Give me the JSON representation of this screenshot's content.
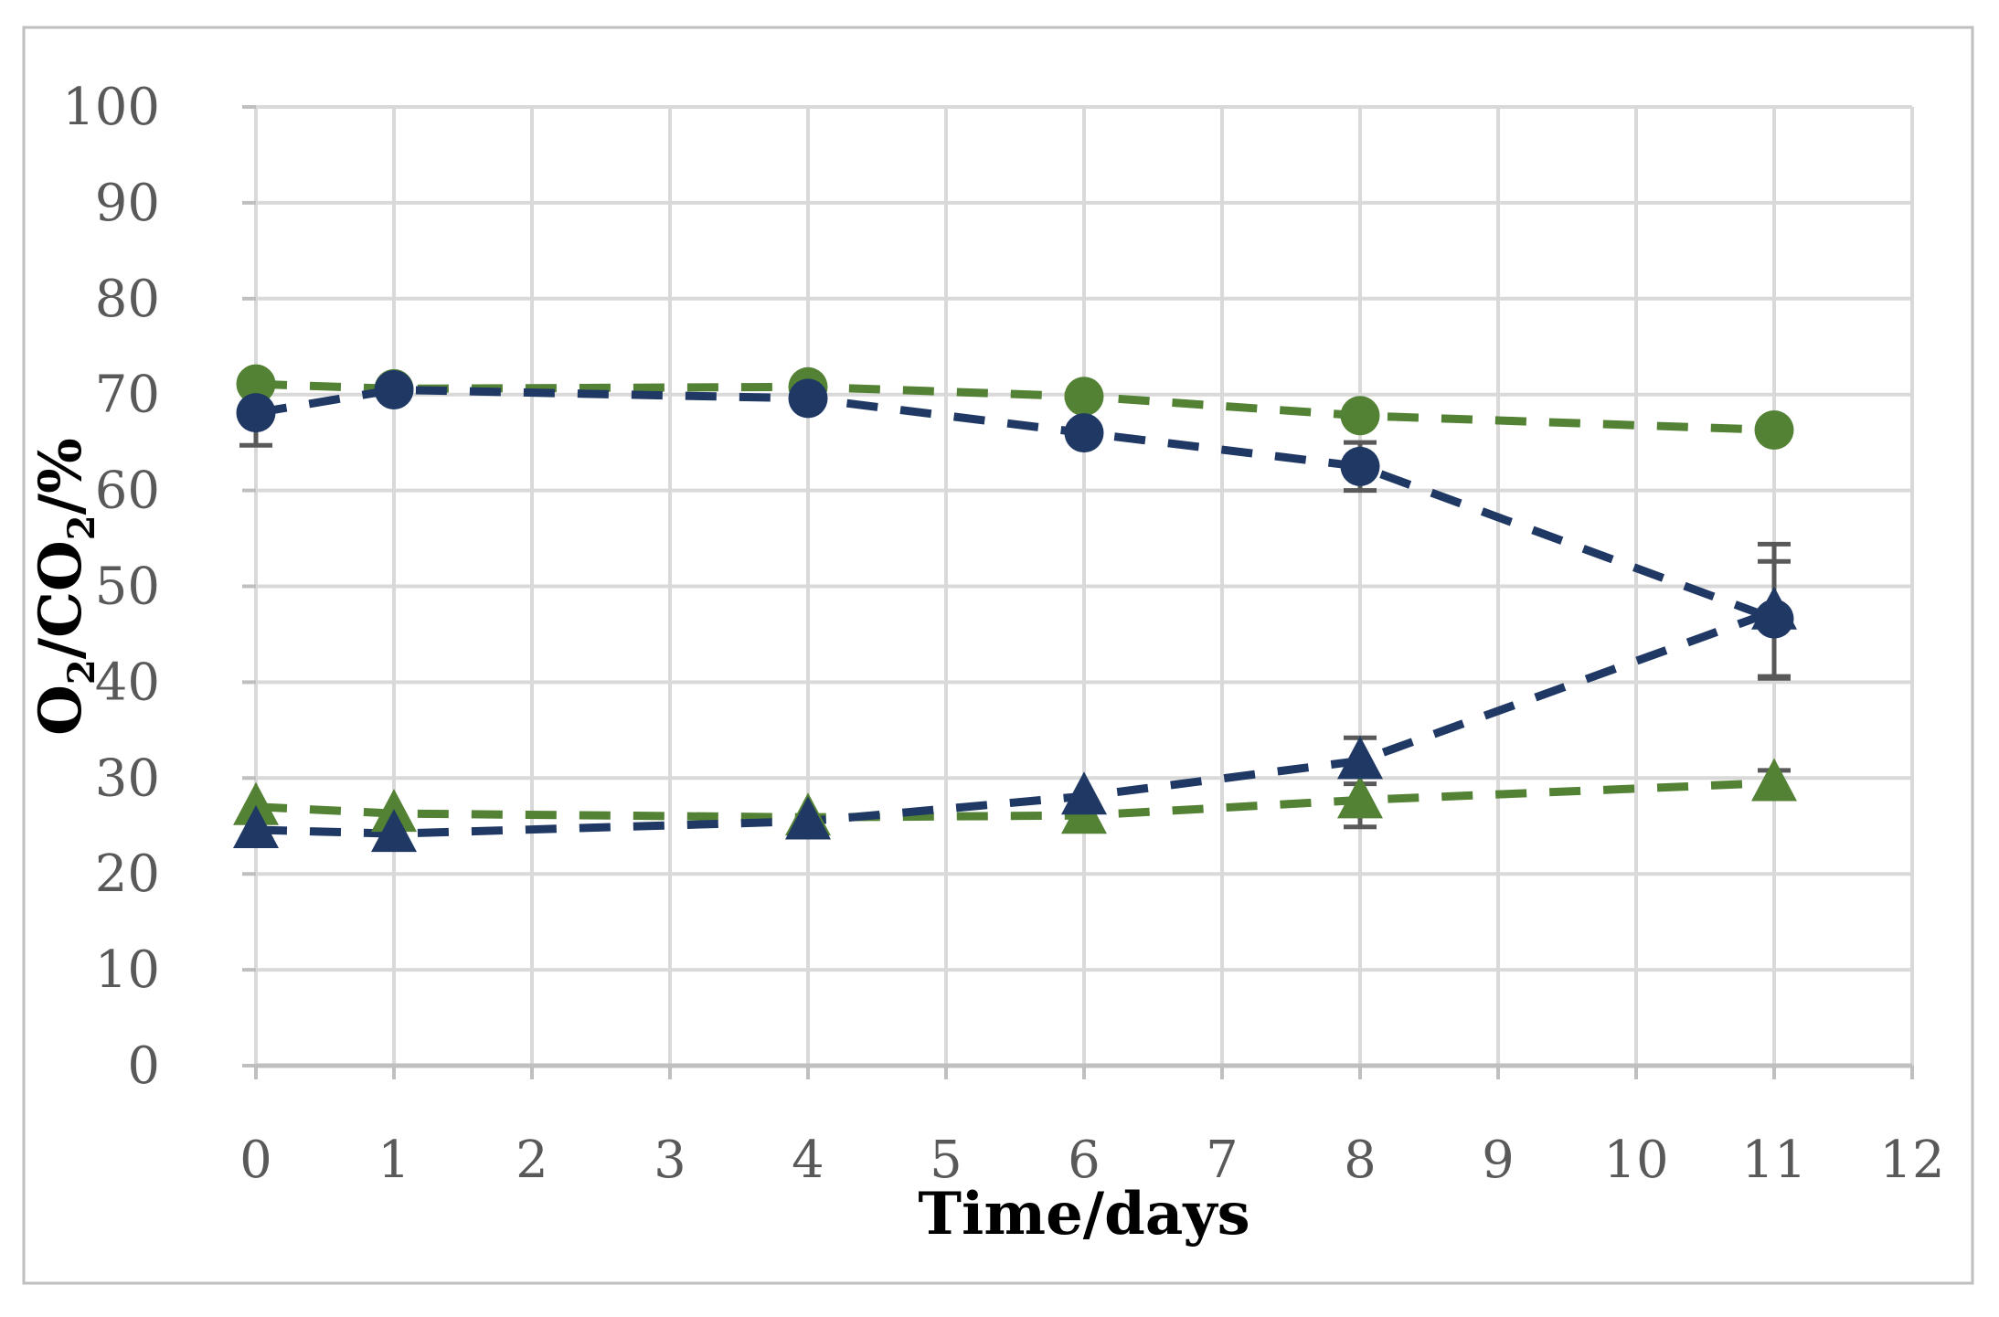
{
  "figure": {
    "background": "#ffffff",
    "border_color": "#bfbfbf"
  },
  "chart_data": {
    "type": "line",
    "title": "",
    "xlabel": "Time/days",
    "ylabel": "O2/CO2/%",
    "ylabel_segments": [
      {
        "text": "O",
        "sub": false
      },
      {
        "text": "2",
        "sub": true
      },
      {
        "text": "/CO",
        "sub": false
      },
      {
        "text": "2",
        "sub": true
      },
      {
        "text": "/%",
        "sub": false
      }
    ],
    "xlim": [
      0,
      12
    ],
    "ylim": [
      0,
      100
    ],
    "x_ticks": [
      0,
      1,
      2,
      3,
      4,
      5,
      6,
      7,
      8,
      9,
      10,
      11,
      12
    ],
    "y_ticks": [
      0,
      10,
      20,
      30,
      40,
      50,
      60,
      70,
      80,
      90,
      100
    ],
    "grid": true,
    "legend_position": "none",
    "x": [
      0,
      1,
      4,
      6,
      8,
      11
    ],
    "series": [
      {
        "name": "green-circle-series",
        "marker": "circle",
        "color": "#548235",
        "values": [
          71.1,
          70.6,
          70.8,
          69.8,
          67.8,
          66.3
        ],
        "error_bars": []
      },
      {
        "name": "green-triangle-series",
        "marker": "triangle",
        "color": "#548235",
        "values": [
          27.0,
          26.3,
          25.9,
          26.1,
          27.7,
          29.5
        ],
        "error_bars": [
          {
            "x": 8,
            "plus": 2.8,
            "minus": 2.8
          },
          {
            "x": 11,
            "plus": 1.3,
            "minus": 1.3
          }
        ]
      },
      {
        "name": "navy-triangle-series",
        "marker": "triangle",
        "color": "#1f3864",
        "values": [
          24.6,
          24.2,
          25.5,
          28.1,
          31.8,
          47.4
        ],
        "error_bars": [
          {
            "x": 8,
            "plus": 2.4,
            "minus": 2.4
          },
          {
            "x": 11,
            "plus": 7.0,
            "minus": 7.0
          }
        ]
      },
      {
        "name": "navy-circle-series",
        "marker": "circle",
        "color": "#1f3864",
        "values": [
          68.1,
          70.5,
          69.6,
          66.0,
          62.5,
          46.6
        ],
        "error_bars": [
          {
            "x": 0,
            "plus": 3.3,
            "minus": 3.4
          },
          {
            "x": 8,
            "plus": 2.5,
            "minus": 2.5
          },
          {
            "x": 11,
            "plus": 6.0,
            "minus": 6.0
          }
        ]
      }
    ],
    "style": {
      "grid_color": "#d9d9d9",
      "axis_color": "#bfbfbf",
      "tick_label_color": "#595959",
      "title_color": "#000000",
      "error_bar_color": "#595959",
      "dash": [
        34,
        25
      ],
      "line_width": 9
    }
  }
}
